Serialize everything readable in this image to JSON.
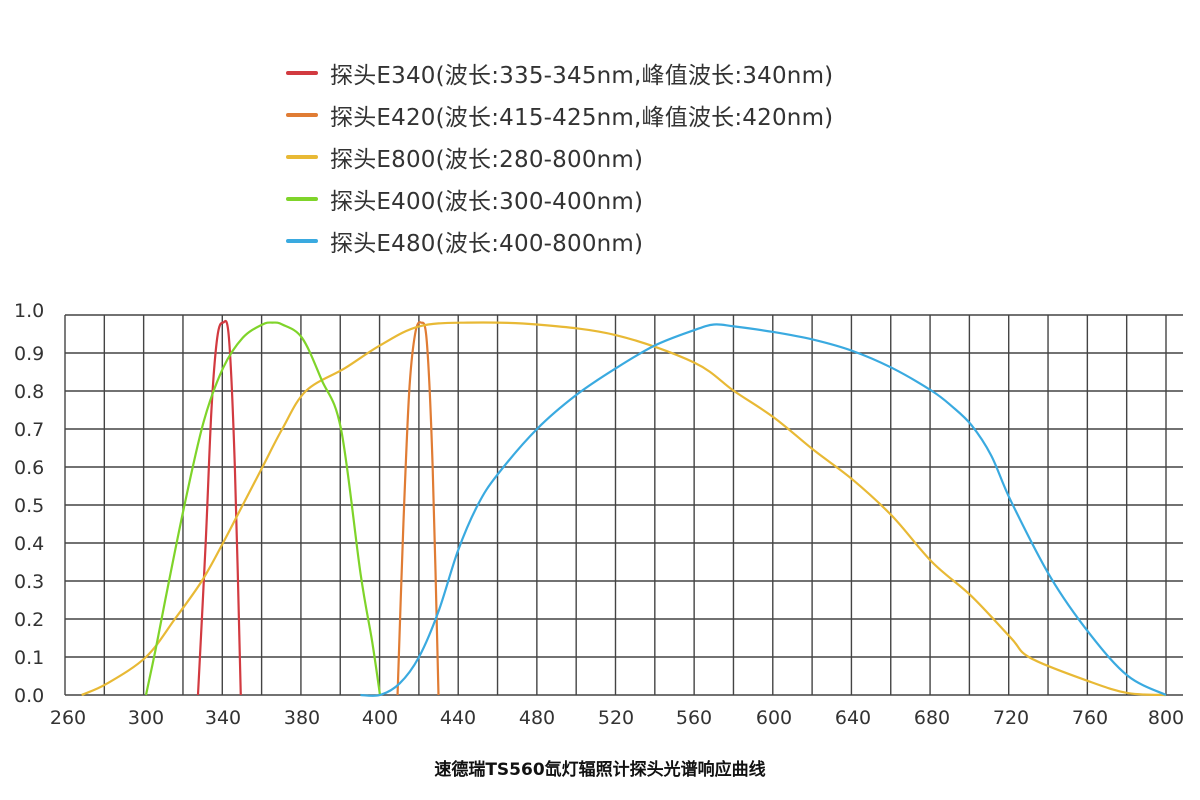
{
  "chart_data": {
    "type": "line",
    "title": "速德瑞TS560氙灯辐照计探头光谱响应曲线",
    "xlabel": "",
    "ylabel": "",
    "xlim": [
      258,
      800
    ],
    "ylim": [
      0,
      1.0
    ],
    "grid": true,
    "legend_position": "top-center",
    "x_ticks": [
      "260",
      "300",
      "340",
      "380",
      "400",
      "440",
      "480",
      "520",
      "560",
      "600",
      "640",
      "680",
      "720",
      "760",
      "800"
    ],
    "y_ticks": [
      "0.0",
      "0.1",
      "0.2",
      "0.3",
      "0.4",
      "0.5",
      "0.6",
      "0.7",
      "0.8",
      "0.9",
      "1.0"
    ],
    "series": [
      {
        "name": "探头E340(波长:335-345nm,峰值波长:340nm)",
        "color": "#d23a40",
        "x": [
          327,
          331,
          334,
          337,
          340,
          343,
          346,
          349
        ],
        "y": [
          0,
          0.4,
          0.75,
          0.94,
          0.98,
          0.94,
          0.6,
          0
        ]
      },
      {
        "name": "探头E420(波长:415-425nm,峰值波长:420nm)",
        "color": "#e07c34",
        "x": [
          409,
          412,
          415,
          418,
          421,
          424,
          427,
          430
        ],
        "y": [
          0,
          0.45,
          0.8,
          0.95,
          0.98,
          0.93,
          0.6,
          0
        ]
      },
      {
        "name": "探头E800(波长:280-800nm)",
        "color": "#e8b935",
        "x": [
          267,
          280,
          300,
          315,
          329,
          340,
          350,
          360,
          370,
          381,
          391,
          400,
          420,
          445,
          480,
          520,
          560,
          580,
          600,
          620,
          640,
          660,
          680,
          700,
          720,
          730,
          760,
          780,
          800
        ],
        "y": [
          0,
          0.03,
          0.1,
          0.2,
          0.3,
          0.4,
          0.5,
          0.6,
          0.7,
          0.8,
          0.86,
          0.92,
          0.97,
          0.98,
          0.975,
          0.947,
          0.875,
          0.8,
          0.73,
          0.645,
          0.566,
          0.47,
          0.35,
          0.26,
          0.15,
          0.097,
          0.035,
          0.005,
          0
        ]
      },
      {
        "name": "探头E400(波长:300-400nm)",
        "color": "#7fd42a",
        "x": [
          300,
          305,
          310,
          320,
          330,
          340,
          350,
          360,
          365,
          370,
          380,
          385,
          390,
          395,
          398,
          400
        ],
        "y": [
          0,
          0.12,
          0.25,
          0.5,
          0.72,
          0.86,
          0.94,
          0.975,
          0.98,
          0.975,
          0.94,
          0.83,
          0.7,
          0.32,
          0.14,
          0
        ]
      },
      {
        "name": "探头E480(波长:400-800nm)",
        "color": "#3aaae0",
        "x": [
          395,
          400,
          410,
          420,
          430,
          440,
          450,
          460,
          480,
          500,
          520,
          540,
          560,
          570,
          580,
          600,
          620,
          640,
          660,
          680,
          690,
          700,
          710,
          720,
          740,
          760,
          780,
          800
        ],
        "y": [
          0,
          0,
          0.03,
          0.1,
          0.22,
          0.38,
          0.5,
          0.58,
          0.7,
          0.79,
          0.86,
          0.92,
          0.96,
          0.975,
          0.97,
          0.955,
          0.935,
          0.905,
          0.86,
          0.8,
          0.76,
          0.71,
          0.63,
          0.51,
          0.31,
          0.16,
          0.05,
          0
        ]
      }
    ]
  }
}
